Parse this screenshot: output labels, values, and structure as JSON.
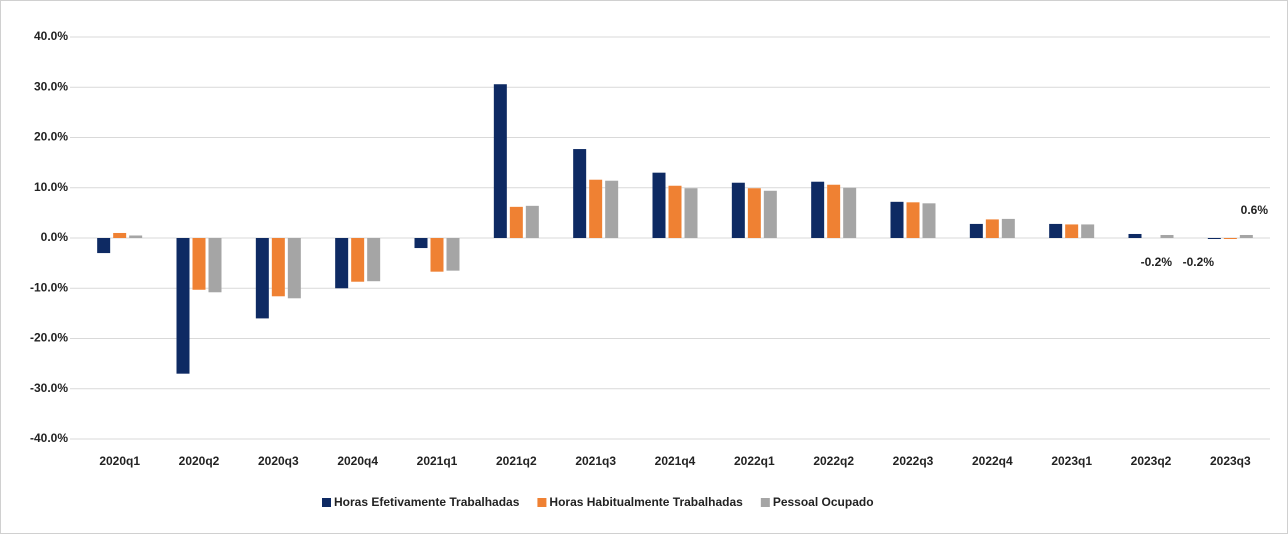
{
  "chart_data": {
    "type": "bar",
    "categories": [
      "2020q1",
      "2020q2",
      "2020q3",
      "2020q4",
      "2021q1",
      "2021q2",
      "2021q3",
      "2021q4",
      "2022q1",
      "2022q2",
      "2022q3",
      "2022q4",
      "2023q1",
      "2023q2",
      "2023q3"
    ],
    "series": [
      {
        "name": "Horas Efetivamente Trabalhadas",
        "color": "#0e2a63",
        "values": [
          -3.0,
          -27.0,
          -16.0,
          -10.0,
          -2.0,
          30.6,
          17.7,
          13.0,
          11.0,
          11.2,
          7.2,
          2.8,
          2.8,
          0.8,
          -0.2
        ],
        "value_labels": [
          null,
          null,
          null,
          null,
          null,
          null,
          null,
          null,
          null,
          null,
          null,
          null,
          null,
          null,
          "-0.2%"
        ]
      },
      {
        "name": "Horas Habitualmente Trabalhadas",
        "color": "#ef8133",
        "values": [
          1.0,
          -10.3,
          -11.6,
          -8.7,
          -6.7,
          6.2,
          11.6,
          10.4,
          9.9,
          10.6,
          7.1,
          3.7,
          2.7,
          0.0,
          -0.2
        ],
        "value_labels": [
          null,
          null,
          null,
          null,
          null,
          null,
          null,
          null,
          null,
          null,
          null,
          null,
          null,
          null,
          "-0.2%"
        ]
      },
      {
        "name": "Pessoal Ocupado",
        "color": "#a5a5a5",
        "values": [
          0.5,
          -10.8,
          -12.0,
          -8.6,
          -6.5,
          6.4,
          11.4,
          9.9,
          9.4,
          10.0,
          6.9,
          3.8,
          2.7,
          0.6,
          0.6
        ],
        "value_labels": [
          null,
          null,
          null,
          null,
          null,
          null,
          null,
          null,
          null,
          null,
          null,
          null,
          null,
          null,
          "0.6%"
        ]
      }
    ],
    "ylim": [
      -40,
      40
    ],
    "yticks": [
      {
        "value": -40,
        "label": "-40.0%"
      },
      {
        "value": -30,
        "label": "-30.0%"
      },
      {
        "value": -20,
        "label": "-20.0%"
      },
      {
        "value": -10,
        "label": "-10.0%"
      },
      {
        "value": 0,
        "label": "0.0%"
      },
      {
        "value": 10,
        "label": "10.0%"
      },
      {
        "value": 20,
        "label": "20.0%"
      },
      {
        "value": 30,
        "label": "30.0%"
      },
      {
        "value": 40,
        "label": "40.0%"
      }
    ],
    "grid": true,
    "legend": "bottom"
  }
}
